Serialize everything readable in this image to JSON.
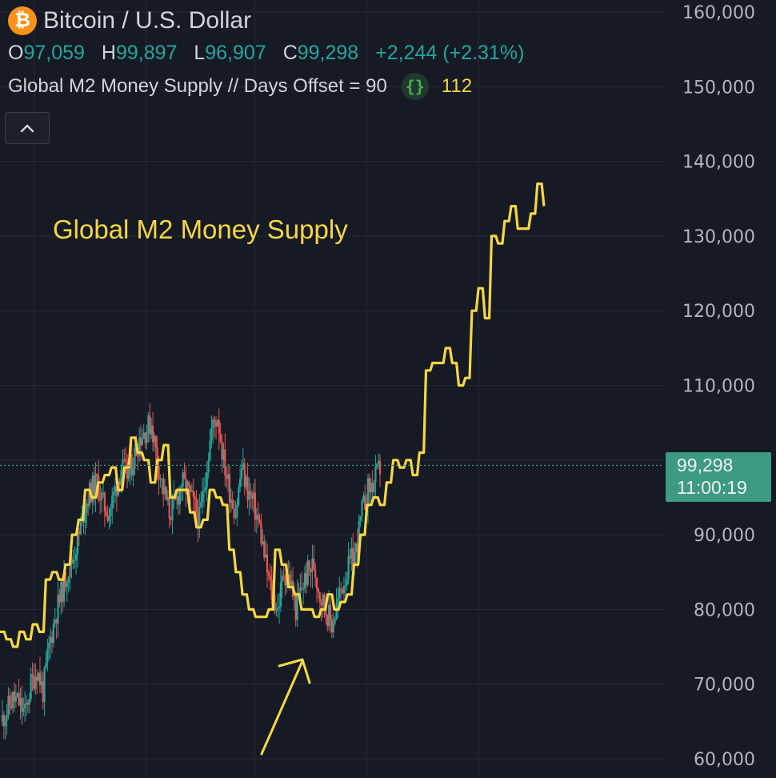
{
  "header": {
    "title": "Bitcoin / U.S. Dollar",
    "logo_glyph": "₿",
    "ohlc": [
      {
        "label": "O",
        "value": "97,059"
      },
      {
        "label": "H",
        "value": "99,897"
      },
      {
        "label": "L",
        "value": "96,907"
      },
      {
        "label": "C",
        "value": "99,298"
      }
    ],
    "change": "+2,244 (+2.31%)",
    "indicator_name": "Global M2 Money Supply // Days Offset = 90",
    "indicator_icon": "{}",
    "indicator_value": "112"
  },
  "annotation": "Global M2 Money Supply",
  "price_badge": {
    "price": "99,298",
    "countdown": "11:00:19"
  },
  "colors": {
    "background": "#161a25",
    "grid": "#262a36",
    "up": "#26a69a",
    "down": "#ef5350",
    "m2_line": "#f5d742",
    "axis_text": "#b2b5be"
  },
  "chart_data": {
    "type": "line",
    "ylim": [
      60000,
      160000
    ],
    "yticks": [
      "160,000",
      "150,000",
      "140,000",
      "130,000",
      "120,000",
      "110,000",
      "90,000",
      "80,000",
      "70,000",
      "60,000"
    ],
    "ytick_values": [
      160000,
      150000,
      140000,
      130000,
      120000,
      110000,
      90000,
      80000,
      70000,
      60000
    ],
    "last_price": 99298,
    "series": [
      {
        "values": [
          77000,
          76000,
          75000,
          77000,
          76000,
          78000,
          77000,
          84000,
          85000,
          84000,
          86000,
          90000,
          92000,
          96000,
          95000,
          97000,
          98000,
          99000,
          96000,
          99000,
          103000,
          101000,
          100000,
          97000,
          100000,
          102000,
          95000,
          96000,
          96000,
          93000,
          91000,
          92000,
          96000,
          95000,
          94000,
          88000,
          85000,
          82000,
          80000,
          79000,
          79000,
          80000,
          88000,
          86000,
          83000,
          82000,
          80000,
          80000,
          79000,
          80000,
          82000,
          80000,
          81000,
          82000,
          86000,
          90000,
          94000,
          95000,
          94000,
          97000,
          100000,
          99000,
          100000,
          98000,
          101000,
          112000,
          113000,
          113000,
          115000,
          113000,
          110000,
          111000,
          120000,
          123000,
          119000,
          130000,
          129000,
          132000,
          134000,
          131000,
          131000,
          133000,
          137000,
          134000
        ]
      },
      {
        "values": [
          65000,
          66500,
          68000,
          67500,
          66000,
          70000,
          72000,
          69000,
          75000,
          79000,
          82000,
          85000,
          87000,
          90000,
          94000,
          96000,
          97000,
          94000,
          93000,
          96000,
          99000,
          98000,
          100000,
          103000,
          104000,
          105000,
          100000,
          96000,
          93000,
          94000,
          97000,
          96000,
          94000,
          92000,
          98000,
          104000,
          106000,
          100000,
          96000,
          93000,
          99000,
          96000,
          94000,
          91000,
          86000,
          82000,
          80000,
          85000,
          84000,
          80000,
          83000,
          85000,
          86000,
          82000,
          80000,
          78000,
          81000,
          84000,
          86000,
          88000,
          93000,
          96000,
          97000,
          99000
        ]
      }
    ]
  }
}
